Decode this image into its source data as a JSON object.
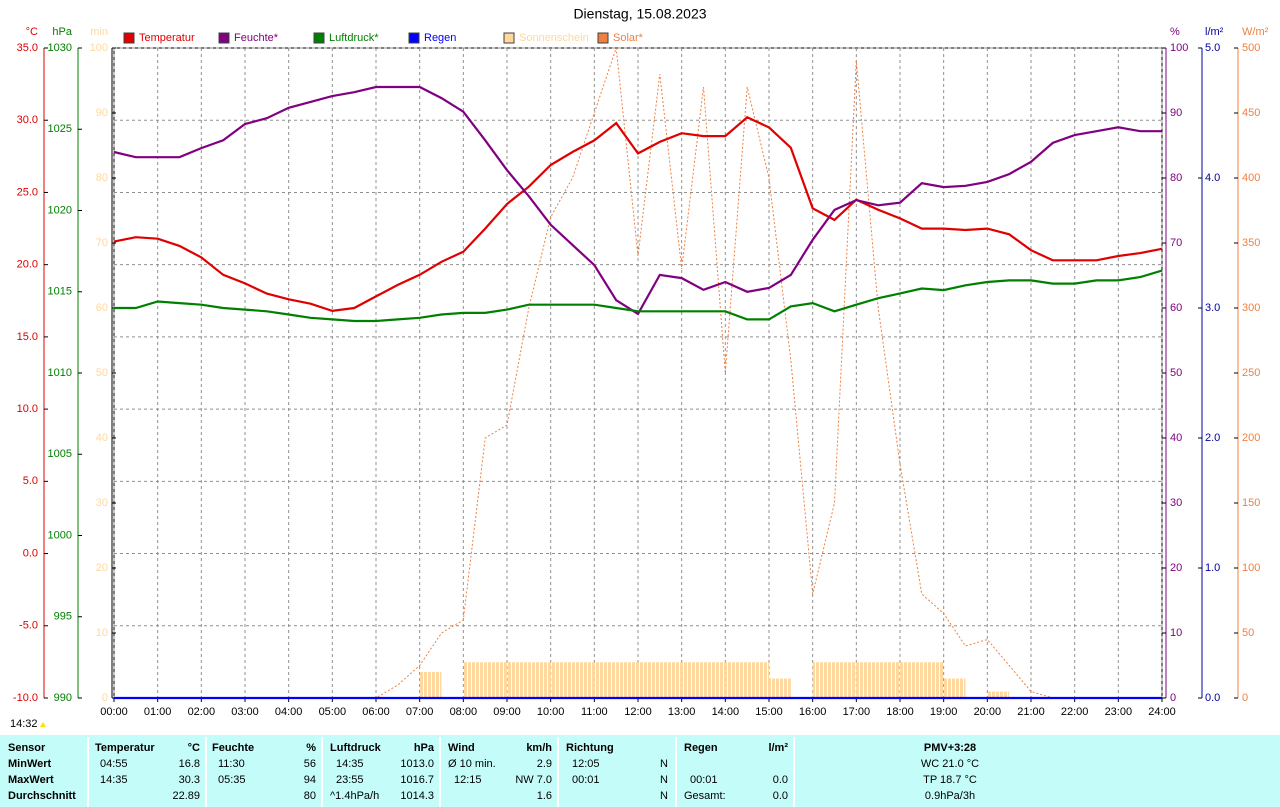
{
  "chart_data": {
    "type": "line",
    "title": "Dienstag, 15.08.2023",
    "x": [
      0,
      0.5,
      1,
      1.5,
      2,
      2.5,
      3,
      3.5,
      4,
      4.5,
      5,
      5.5,
      6,
      6.5,
      7,
      7.5,
      8,
      8.5,
      9,
      9.5,
      10,
      10.5,
      11,
      11.5,
      12,
      12.5,
      13,
      13.5,
      14,
      14.5,
      15,
      15.5,
      16,
      16.5,
      17,
      17.5,
      18,
      18.5,
      19,
      19.5,
      20,
      20.5,
      21,
      21.5,
      22,
      22.5,
      23,
      23.5,
      24
    ],
    "xlim": [
      0,
      24
    ],
    "xticks": [
      {
        "value": 0,
        "label": "00:00"
      },
      {
        "value": 1,
        "label": "01:00"
      },
      {
        "value": 2,
        "label": "02:00"
      },
      {
        "value": 3,
        "label": "03:00"
      },
      {
        "value": 4,
        "label": "04:00"
      },
      {
        "value": 5,
        "label": "05:00"
      },
      {
        "value": 6,
        "label": "06:00"
      },
      {
        "value": 7,
        "label": "07:00"
      },
      {
        "value": 8,
        "label": "08:00"
      },
      {
        "value": 9,
        "label": "09:00"
      },
      {
        "value": 10,
        "label": "10:00"
      },
      {
        "value": 11,
        "label": "11:00"
      },
      {
        "value": 12,
        "label": "12:00"
      },
      {
        "value": 13,
        "label": "13:00"
      },
      {
        "value": 14,
        "label": "14:00"
      },
      {
        "value": 15,
        "label": "15:00"
      },
      {
        "value": 16,
        "label": "16:00"
      },
      {
        "value": 17,
        "label": "17:00"
      },
      {
        "value": 18,
        "label": "18:00"
      },
      {
        "value": 19,
        "label": "19:00"
      },
      {
        "value": 20,
        "label": "20:00"
      },
      {
        "value": 21,
        "label": "21:00"
      },
      {
        "value": 22,
        "label": "22:00"
      },
      {
        "value": 23,
        "label": "23:00"
      },
      {
        "value": 24,
        "label": "24:00"
      }
    ],
    "grid": true,
    "axes": [
      {
        "unit": "°C",
        "color": "#e00000",
        "lim": [
          -10,
          35
        ],
        "ticks": [
          {
            "value": -10,
            "label": "-10.0"
          },
          {
            "value": -5,
            "label": "-5.0"
          },
          {
            "value": 0,
            "label": "0.0"
          },
          {
            "value": 5,
            "label": "5.0"
          },
          {
            "value": 10,
            "label": "10.0"
          },
          {
            "value": 15,
            "label": "15.0"
          },
          {
            "value": 20,
            "label": "20.0"
          },
          {
            "value": 25,
            "label": "25.0"
          },
          {
            "value": 30,
            "label": "30.0"
          },
          {
            "value": 35,
            "label": "35.0"
          }
        ]
      },
      {
        "unit": "hPa",
        "color": "#008000",
        "lim": [
          990,
          1030
        ],
        "ticks": [
          990,
          995,
          1000,
          1005,
          1010,
          1015,
          1020,
          1025,
          1030
        ]
      },
      {
        "unit": "min",
        "color": "#ffd8a0",
        "lim": [
          0,
          100
        ],
        "ticks": [
          0,
          10,
          20,
          30,
          40,
          50,
          60,
          70,
          80,
          90,
          100
        ]
      },
      {
        "unit": "%",
        "color": "#800080",
        "lim": [
          0,
          100
        ],
        "ticks": [
          0,
          10,
          20,
          30,
          40,
          50,
          60,
          70,
          80,
          90,
          100
        ]
      },
      {
        "unit": "l/m²",
        "color": "#0000a0",
        "lim": [
          0,
          5
        ],
        "ticks": [
          {
            "value": 0,
            "label": "0.0"
          },
          {
            "value": 1,
            "label": "1.0"
          },
          {
            "value": 2,
            "label": "2.0"
          },
          {
            "value": 3,
            "label": "3.0"
          },
          {
            "value": 4,
            "label": "4.0"
          },
          {
            "value": 5,
            "label": "5.0"
          }
        ]
      },
      {
        "unit": "W/m²",
        "color": "#f08040",
        "lim": [
          0,
          500
        ],
        "ticks": [
          0,
          50,
          100,
          150,
          200,
          250,
          300,
          350,
          400,
          450,
          500
        ]
      }
    ],
    "series": [
      {
        "name": "Temperatur",
        "color": "#e00000",
        "style": "line",
        "axis": 0,
        "values": [
          21.6,
          21.9,
          21.8,
          21.3,
          20.5,
          19.3,
          18.7,
          18.0,
          17.6,
          17.3,
          16.8,
          17.0,
          17.8,
          18.6,
          19.3,
          20.2,
          20.9,
          22.5,
          24.2,
          25.4,
          26.9,
          27.8,
          28.6,
          29.8,
          27.7,
          28.5,
          29.1,
          28.9,
          28.9,
          30.2,
          29.5,
          28.1,
          23.9,
          23.1,
          24.5,
          23.8,
          23.2,
          22.5,
          22.5,
          22.4,
          22.5,
          22.1,
          21.0,
          20.3,
          20.3,
          20.3,
          20.6,
          20.8,
          21.1
        ]
      },
      {
        "name": "Feuchte*",
        "color": "#800080",
        "style": "line",
        "axis": 3,
        "values": [
          84,
          83.2,
          83.2,
          83.2,
          84.6,
          85.8,
          88.3,
          89.2,
          90.8,
          91.7,
          92.6,
          93.2,
          94,
          94,
          94,
          92.3,
          90.2,
          85.8,
          81.2,
          77.2,
          72.8,
          69.7,
          66.6,
          61.2,
          59.1,
          65.1,
          64.6,
          62.8,
          64,
          62.5,
          63.1,
          65.1,
          70.5,
          75.1,
          76.6,
          75.8,
          76.2,
          79.2,
          78.6,
          78.8,
          79.4,
          80.6,
          82.5,
          85.4,
          86.6,
          87.2,
          87.8,
          87.2,
          87.2
        ]
      },
      {
        "name": "Luftdruck*",
        "color": "#008000",
        "style": "line",
        "axis": 1,
        "values": [
          1014.0,
          1014.0,
          1014.4,
          1014.3,
          1014.2,
          1014.0,
          1013.9,
          1013.8,
          1013.6,
          1013.4,
          1013.3,
          1013.2,
          1013.2,
          1013.3,
          1013.4,
          1013.6,
          1013.7,
          1013.7,
          1013.9,
          1014.2,
          1014.2,
          1014.2,
          1014.2,
          1014.0,
          1013.8,
          1013.8,
          1013.8,
          1013.8,
          1013.8,
          1013.3,
          1013.3,
          1014.1,
          1014.3,
          1013.8,
          1014.2,
          1014.6,
          1014.9,
          1015.2,
          1015.1,
          1015.4,
          1015.6,
          1015.7,
          1015.7,
          1015.5,
          1015.5,
          1015.7,
          1015.7,
          1015.9,
          1016.3
        ]
      },
      {
        "name": "Regen",
        "color": "#0000ff",
        "style": "line",
        "axis": 4,
        "values": [
          0,
          0,
          0,
          0,
          0,
          0,
          0,
          0,
          0,
          0,
          0,
          0,
          0,
          0,
          0,
          0,
          0,
          0,
          0,
          0,
          0,
          0,
          0,
          0,
          0,
          0,
          0,
          0,
          0,
          0,
          0,
          0,
          0,
          0,
          0,
          0,
          0,
          0,
          0,
          0,
          0,
          0,
          0,
          0,
          0,
          0,
          0,
          0,
          0
        ]
      },
      {
        "name": "Sonnenschein",
        "color": "#ffd8a0",
        "style": "bars",
        "axis": 2,
        "values": [
          0,
          0,
          0,
          0,
          0,
          0,
          0,
          0,
          0,
          0,
          0,
          0,
          0,
          0,
          4,
          0,
          5.5,
          5.5,
          5.5,
          5.5,
          5.5,
          5.5,
          5.5,
          5.5,
          5.5,
          5.5,
          5.5,
          5.5,
          5.5,
          5.5,
          3,
          0,
          5.5,
          5.5,
          5.5,
          5.5,
          5.5,
          5.5,
          3,
          0,
          1,
          0,
          0,
          0,
          0,
          0,
          0,
          0,
          0
        ]
      },
      {
        "name": "Solar*",
        "color": "#f08040",
        "style": "dotted",
        "axis": 5,
        "values": [
          0,
          0,
          0,
          0,
          0,
          0,
          0,
          0,
          0,
          0,
          0,
          0,
          0,
          10,
          25,
          50,
          60,
          200,
          210,
          300,
          370,
          400,
          450,
          500,
          340,
          480,
          330,
          470,
          250,
          470,
          400,
          260,
          80,
          150,
          490,
          300,
          180,
          80,
          65,
          40,
          45,
          25,
          5,
          0,
          0,
          0,
          0,
          0,
          0
        ]
      }
    ]
  },
  "footer_time": "14:32",
  "table": {
    "header": [
      "Sensor",
      "Temperatur",
      "°C",
      "Feuchte",
      "%",
      "Luftdruck",
      "hPa",
      "Wind",
      "km/h",
      "Richtung",
      "Regen",
      "l/m²",
      "PMV+3:28"
    ],
    "rows": [
      [
        "MinWert",
        "04:55",
        "16.8",
        "11:30",
        "56",
        "14:35",
        "1013.0",
        "Ø 10 min.",
        "2.9",
        "12:05",
        "N",
        "WC 21.0 °C"
      ],
      [
        "MaxWert",
        "14:35",
        "30.3",
        "05:35",
        "94",
        "23:55",
        "1016.7",
        "12:15",
        "NW 7.0",
        "00:01",
        "N",
        "00:01",
        "0.0",
        "TP 18.7 °C"
      ],
      [
        "Durchschnitt",
        "22.89",
        "80",
        "^1.4hPa/h",
        "1014.3",
        "1.6",
        "N",
        "Gesamt:",
        "0.0",
        "0.9hPa/3h"
      ]
    ]
  }
}
